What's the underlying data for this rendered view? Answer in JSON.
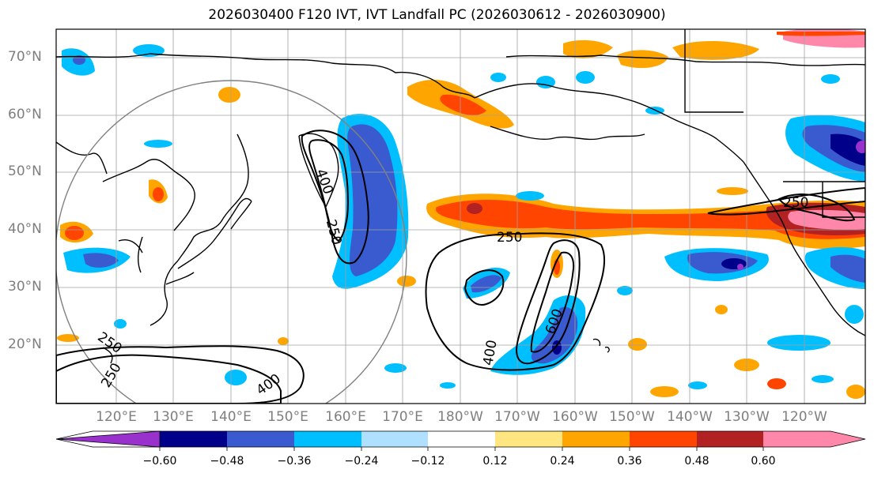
{
  "title": "2026030400 F120 IVT, IVT Landfall PC (2026030612 - 2026030900)",
  "latitude_labels": [
    "70°N",
    "60°N",
    "50°N",
    "40°N",
    "30°N",
    "20°N"
  ],
  "longitude_labels": [
    "120°E",
    "130°E",
    "140°E",
    "150°E",
    "160°E",
    "170°E",
    "180°W",
    "170°W",
    "160°W",
    "150°W",
    "140°W",
    "130°W",
    "120°W"
  ],
  "contour_labels": [
    "400",
    "250",
    "250",
    "600",
    "400",
    "250",
    "250",
    "250",
    "400"
  ],
  "colorbar": {
    "tick_labels": [
      "−0.60",
      "−0.48",
      "−0.36",
      "−0.24",
      "−0.12",
      "0.12",
      "0.24",
      "0.36",
      "0.48",
      "0.60"
    ],
    "colors": [
      "#9932cc",
      "#00008b",
      "#3a5bcf",
      "#00bfff",
      "#b0e0ff",
      "#ffffff",
      "#ffe680",
      "#ffa500",
      "#ff4500",
      "#b22222",
      "#ff88aa"
    ]
  },
  "colors": {
    "land_outline": "#000000",
    "grid": "#a0a0a0",
    "tick_label": "#7f7f7f",
    "circle": "#808080"
  }
}
